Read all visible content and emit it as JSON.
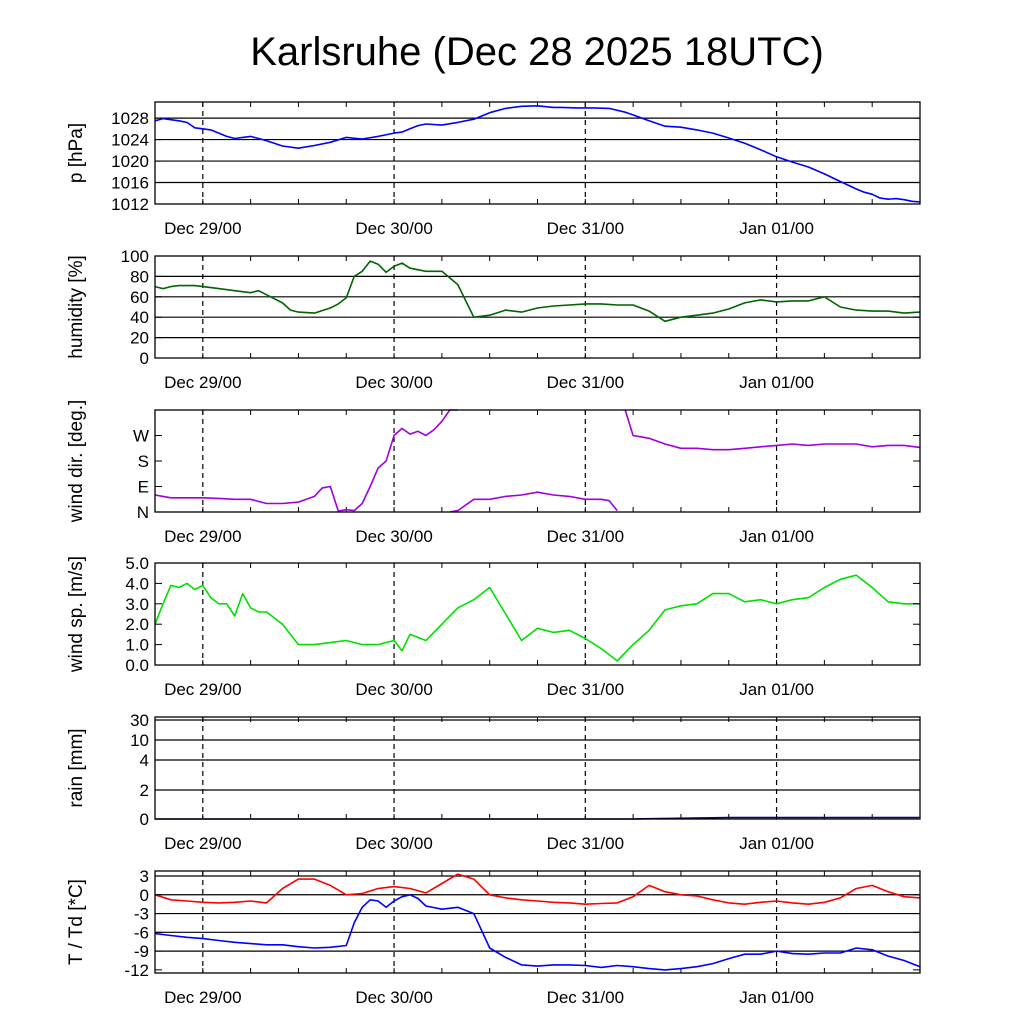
{
  "chart_data": {
    "type": "line",
    "title": "Karlsruhe (Dec 28 2025 18UTC)",
    "x_axis": {
      "tick_labels": [
        "Dec 29/00",
        "Dec 30/00",
        "Dec 31/00",
        "Jan 01/00"
      ],
      "range_hours_from_start": [
        0,
        96
      ]
    },
    "panels": [
      {
        "key": "pressure",
        "ylabel": "p [hPa]",
        "ylim": [
          1012,
          1031
        ],
        "yticks": [
          1012,
          1016,
          1020,
          1024,
          1028
        ],
        "gridlines": [
          1016,
          1020,
          1024,
          1028
        ],
        "series": [
          {
            "color": "#0000ff",
            "x": [
              0,
              1,
              2,
              3,
              4,
              5,
              6,
              7,
              8,
              9,
              10,
              11,
              12,
              13,
              14,
              16,
              18,
              20,
              22,
              24,
              26,
              28,
              30,
              31,
              32,
              33,
              34,
              36,
              38,
              40,
              42,
              44,
              46,
              48,
              50,
              51,
              53,
              55,
              57,
              59,
              60,
              62,
              64,
              66,
              68,
              70,
              72,
              74,
              76,
              78,
              80,
              82,
              84,
              86,
              88,
              89,
              90,
              91,
              92,
              93,
              94,
              95,
              96
            ],
            "y": [
              1027.5,
              1027.9,
              1027.7,
              1027.5,
              1027.2,
              1026.2,
              1026.0,
              1025.8,
              1025.2,
              1024.6,
              1024.2,
              1024.4,
              1024.6,
              1024.2,
              1023.8,
              1022.8,
              1022.4,
              1022.9,
              1023.5,
              1024.4,
              1024.1,
              1024.6,
              1025.2,
              1025.4,
              1026.0,
              1026.6,
              1026.9,
              1026.7,
              1027.2,
              1027.8,
              1029.0,
              1029.8,
              1030.2,
              1030.3,
              1030.0,
              1030.0,
              1029.9,
              1029.9,
              1029.8,
              1029.1,
              1028.6,
              1027.5,
              1026.5,
              1026.3,
              1025.8,
              1025.2,
              1024.3,
              1023.3,
              1022.1,
              1020.8,
              1019.8,
              1018.9,
              1017.6,
              1016.2,
              1014.8,
              1014.2,
              1013.8,
              1013.1,
              1012.9,
              1013.0,
              1012.8,
              1012.5,
              1012.4
            ]
          }
        ]
      },
      {
        "key": "humidity",
        "ylabel": "humidity [%]",
        "ylim": [
          0,
          100
        ],
        "yticks": [
          0,
          20,
          40,
          60,
          80,
          100
        ],
        "gridlines": [
          20,
          40,
          60,
          80
        ],
        "series": [
          {
            "color": "#006400",
            "x": [
              0,
              1,
              2,
              3,
              4,
              5,
              6,
              8,
              10,
              12,
              13,
              14,
              16,
              17,
              18,
              20,
              22,
              23,
              24,
              25,
              26,
              27,
              28,
              29,
              30,
              31,
              32,
              34,
              36,
              38,
              40,
              42,
              44,
              46,
              48,
              50,
              52,
              54,
              56,
              58,
              60,
              62,
              64,
              66,
              68,
              70,
              72,
              74,
              76,
              78,
              80,
              82,
              84,
              86,
              88,
              90,
              92,
              94,
              96
            ],
            "y": [
              70,
              68,
              70,
              71,
              71,
              71,
              70,
              68,
              66,
              64,
              66,
              62,
              54,
              47,
              45,
              44,
              49,
              53,
              59,
              80,
              85,
              95,
              92,
              84,
              90,
              93,
              88,
              85,
              85,
              72,
              40,
              42,
              47,
              45,
              49,
              51,
              52,
              53,
              53,
              52,
              52,
              46,
              36,
              40,
              42,
              44,
              48,
              54,
              57,
              55,
              56,
              56,
              60,
              50,
              47,
              46,
              46,
              44,
              45
            ]
          }
        ]
      },
      {
        "key": "wind_direction",
        "ylabel": "wind dir. [deg.]",
        "ylim": [
          0,
          360
        ],
        "yticks": [
          0,
          90,
          180,
          270
        ],
        "ytick_labels": [
          "N",
          "E",
          "S",
          "W"
        ],
        "gridlines": [],
        "series": [
          {
            "color": "#a000e0",
            "x": [
              0,
              1,
              2,
              4,
              6,
              8,
              10,
              12,
              14,
              16,
              18,
              20,
              21,
              22,
              23,
              24,
              25,
              26,
              27,
              28,
              29,
              30,
              31,
              32,
              33,
              34,
              35,
              36,
              37,
              38,
              "gap",
              37,
              38,
              40,
              42,
              44,
              46,
              48,
              50,
              52,
              54,
              56,
              57,
              58,
              "gap",
              59,
              60,
              62,
              64,
              66,
              68,
              70,
              72,
              74,
              76,
              78,
              80,
              82,
              84,
              86,
              88,
              90,
              92,
              94,
              96
            ],
            "y": [
              60,
              55,
              50,
              50,
              50,
              48,
              45,
              45,
              30,
              30,
              35,
              55,
              85,
              90,
              3,
              8,
              5,
              30,
              90,
              155,
              180,
              270,
              295,
              275,
              285,
              270,
              290,
              320,
              360,
              360,
              "gap",
              0,
              5,
              45,
              45,
              55,
              60,
              70,
              60,
              55,
              45,
              45,
              40,
              5,
              "gap",
              360,
              270,
              260,
              240,
              225,
              225,
              220,
              220,
              225,
              230,
              235,
              240,
              235,
              240,
              240,
              240,
              230,
              235,
              235,
              228
            ]
          }
        ]
      },
      {
        "key": "wind_speed",
        "ylabel": "wind sp. [m/s]",
        "ylim": [
          0,
          5
        ],
        "yticks": [
          0.0,
          1.0,
          2.0,
          3.0,
          4.0,
          5.0
        ],
        "ytick_labels": [
          "0.0",
          "1.0",
          "2.0",
          "3.0",
          "4.0",
          "5.0"
        ],
        "gridlines": [],
        "series": [
          {
            "color": "#00e000",
            "x": [
              0,
              1,
              2,
              3,
              4,
              5,
              6,
              7,
              8,
              9,
              10,
              11,
              12,
              13,
              14,
              16,
              18,
              20,
              22,
              24,
              26,
              28,
              30,
              31,
              32,
              34,
              36,
              38,
              40,
              42,
              44,
              46,
              48,
              50,
              52,
              54,
              56,
              58,
              60,
              62,
              64,
              66,
              68,
              70,
              72,
              74,
              76,
              78,
              80,
              82,
              84,
              86,
              88,
              90,
              92,
              94,
              96
            ],
            "y": [
              2.0,
              3.0,
              3.9,
              3.8,
              4.0,
              3.7,
              3.9,
              3.3,
              3.0,
              3.0,
              2.4,
              3.5,
              2.8,
              2.6,
              2.6,
              2.0,
              1.0,
              1.0,
              1.1,
              1.2,
              1.0,
              1.0,
              1.2,
              0.7,
              1.5,
              1.2,
              2.0,
              2.8,
              3.2,
              3.8,
              2.5,
              1.2,
              1.8,
              1.6,
              1.7,
              1.3,
              0.8,
              0.2,
              1.0,
              1.7,
              2.7,
              2.9,
              3.0,
              3.5,
              3.5,
              3.1,
              3.2,
              3.0,
              3.2,
              3.3,
              3.8,
              4.2,
              4.4,
              3.8,
              3.1,
              3.0,
              3.0
            ]
          }
        ]
      },
      {
        "key": "rain",
        "ylabel": "rain [mm]",
        "scale": "nonlinear",
        "ytick_values": [
          0,
          2,
          4,
          10,
          30
        ],
        "gridlines": [
          2,
          4,
          10,
          30
        ],
        "series": [
          {
            "color": "#00008b",
            "x": [
              0,
              24,
              36,
              48,
              60,
              72,
              84,
              96
            ],
            "y": [
              0,
              0,
              0,
              0,
              0,
              0.1,
              0.1,
              0.1
            ]
          }
        ]
      },
      {
        "key": "temperature_dewpoint",
        "ylabel": "T / Td [*C]",
        "ylim": [
          -12.5,
          3.8
        ],
        "yticks": [
          -12,
          -9,
          -6,
          -3,
          0,
          3
        ],
        "gridlines": [
          -9,
          -6,
          -3,
          0,
          3
        ],
        "series": [
          {
            "name": "T",
            "color": "#ff0000",
            "x": [
              0,
              2,
              4,
              6,
              8,
              10,
              12,
              14,
              16,
              18,
              20,
              22,
              24,
              26,
              28,
              30,
              32,
              34,
              36,
              38,
              40,
              42,
              44,
              46,
              48,
              50,
              52,
              54,
              56,
              58,
              60,
              62,
              64,
              66,
              68,
              70,
              72,
              74,
              76,
              78,
              80,
              82,
              84,
              86,
              88,
              90,
              92,
              94,
              96
            ],
            "y": [
              0,
              -0.8,
              -1.0,
              -1.2,
              -1.3,
              -1.2,
              -1.0,
              -1.3,
              1.0,
              2.5,
              2.5,
              1.5,
              0,
              0.2,
              1.0,
              1.3,
              1.0,
              0.3,
              1.8,
              3.3,
              2.5,
              0,
              -0.5,
              -0.8,
              -1.0,
              -1.2,
              -1.3,
              -1.5,
              -1.4,
              -1.3,
              -0.3,
              1.5,
              0.5,
              0,
              -0.2,
              -0.8,
              -1.3,
              -1.5,
              -1.2,
              -1.0,
              -1.3,
              -1.5,
              -1.2,
              -0.5,
              1.0,
              1.5,
              0.5,
              -0.3,
              -0.5
            ]
          },
          {
            "name": "Td",
            "color": "#0000ff",
            "x": [
              0,
              2,
              4,
              6,
              8,
              10,
              12,
              14,
              16,
              18,
              20,
              22,
              24,
              25,
              26,
              27,
              28,
              29,
              30,
              31,
              32,
              33,
              34,
              36,
              38,
              40,
              42,
              44,
              46,
              48,
              50,
              52,
              54,
              56,
              58,
              60,
              62,
              64,
              66,
              68,
              70,
              72,
              74,
              76,
              78,
              80,
              82,
              84,
              86,
              88,
              90,
              92,
              94,
              96
            ],
            "y": [
              -6.2,
              -6.5,
              -6.8,
              -7.0,
              -7.3,
              -7.6,
              -7.8,
              -8.0,
              -8.0,
              -8.3,
              -8.5,
              -8.4,
              -8.1,
              -4.5,
              -2.0,
              -0.8,
              -1.0,
              -2.0,
              -1.0,
              -0.3,
              0,
              -0.6,
              -1.8,
              -2.3,
              -2.0,
              -3.0,
              -8.5,
              -10.0,
              -11.2,
              -11.4,
              -11.2,
              -11.2,
              -11.3,
              -11.6,
              -11.3,
              -11.5,
              -11.8,
              -12.0,
              -11.8,
              -11.5,
              -11.0,
              -10.2,
              -9.5,
              -9.5,
              -9.0,
              -9.4,
              -9.5,
              -9.3,
              -9.3,
              -8.5,
              -8.8,
              -9.8,
              -10.5,
              -11.5
            ]
          }
        ]
      }
    ]
  }
}
